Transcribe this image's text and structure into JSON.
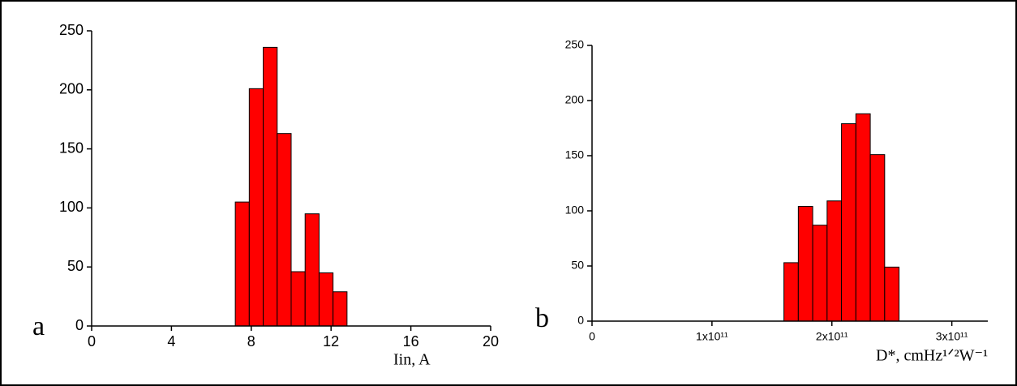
{
  "chart_data": [
    {
      "type": "histogram",
      "panel_label": "a",
      "xlabel": "Iin, A",
      "color": "#ff0000",
      "bins": [
        7.2,
        7.9,
        8.6,
        9.3,
        10.0,
        10.7,
        11.4,
        12.1,
        12.8
      ],
      "values": [
        105,
        201,
        236,
        163,
        46,
        95,
        45,
        29
      ],
      "xlim": [
        0,
        20
      ],
      "xticks": [
        0,
        4,
        8,
        12,
        16,
        20
      ],
      "ylim": [
        0,
        250
      ],
      "yticks": [
        0,
        50,
        100,
        150,
        200,
        250
      ]
    },
    {
      "type": "histogram",
      "panel_label": "b",
      "xlabel": "D*, cmHz¹ᐟ²W⁻¹",
      "color": "#ff0000",
      "bins": [
        160000000000,
        172000000000,
        184000000000,
        196000000000,
        208000000000,
        220000000000,
        232000000000,
        244000000000,
        256000000000
      ],
      "values": [
        53,
        104,
        87,
        109,
        179,
        188,
        151,
        49
      ],
      "xlim": [
        0,
        330000000000
      ],
      "xticks": [
        0,
        {
          "value": 100000000000,
          "label": "1x10¹¹"
        },
        {
          "value": 200000000000,
          "label": "2x10¹¹"
        },
        {
          "value": 300000000000,
          "label": "3x10¹¹"
        }
      ],
      "ylim": [
        0,
        250
      ],
      "yticks": [
        0,
        50,
        100,
        150,
        200,
        250
      ]
    }
  ]
}
